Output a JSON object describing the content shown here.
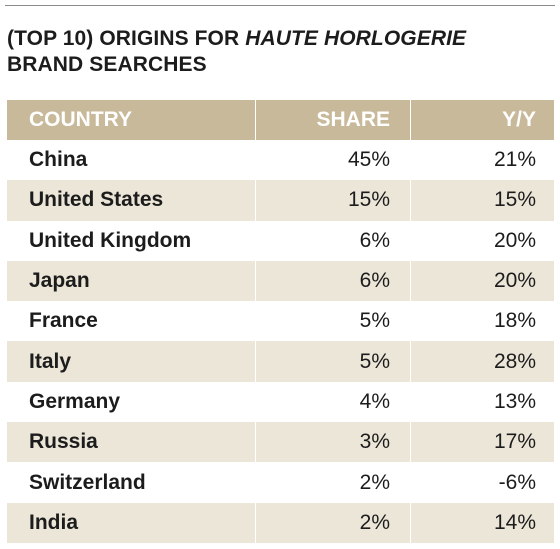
{
  "title": {
    "prefix": "(TOP 10) ORIGINS FOR ",
    "italic": "HAUTE HORLOGERIE",
    "line2": "BRAND SEARCHES"
  },
  "table": {
    "headers": [
      "COUNTRY",
      "SHARE",
      "Y/Y"
    ],
    "rows": [
      {
        "country": "China",
        "share": "45%",
        "yy": "21%"
      },
      {
        "country": "United States",
        "share": "15%",
        "yy": "15%"
      },
      {
        "country": "United Kingdom",
        "share": "6%",
        "yy": "20%"
      },
      {
        "country": "Japan",
        "share": "6%",
        "yy": "20%"
      },
      {
        "country": "France",
        "share": "5%",
        "yy": "18%"
      },
      {
        "country": "Italy",
        "share": "5%",
        "yy": "28%"
      },
      {
        "country": "Germany",
        "share": "4%",
        "yy": "13%"
      },
      {
        "country": "Russia",
        "share": "3%",
        "yy": "17%"
      },
      {
        "country": "Switzerland",
        "share": "2%",
        "yy": "-6%"
      },
      {
        "country": "India",
        "share": "2%",
        "yy": "14%"
      }
    ]
  },
  "colors": {
    "header_bg": "#c8b99a",
    "shaded_row_bg": "#ece6d9"
  }
}
